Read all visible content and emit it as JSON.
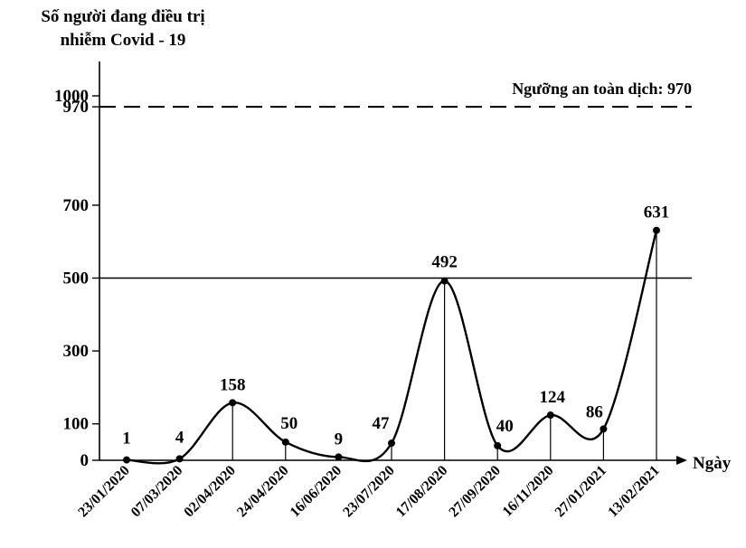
{
  "chart_data": {
    "type": "line",
    "ylabel_lines": [
      "Số người đang điều trị",
      "nhiễm Covid - 19"
    ],
    "xlabel": "Ngày",
    "categories": [
      "23/01/2020",
      "07/03/2020",
      "02/04/2020",
      "24/04/2020",
      "16/06/2020",
      "23/07/2020",
      "17/08/2020",
      "27/09/2020",
      "16/11/2020",
      "27/01/2021",
      "13/02/2021"
    ],
    "series": [
      {
        "values": [
          1,
          4,
          158,
          50,
          9,
          47,
          492,
          40,
          124,
          86,
          631
        ]
      }
    ],
    "yticks": [
      0,
      100,
      300,
      500,
      700,
      970,
      1000
    ],
    "ylim": [
      0,
      1000
    ],
    "reference_lines": [
      {
        "value": 970,
        "style": "dashed",
        "label": "Ngưỡng an toàn dịch: 970"
      },
      {
        "value": 500,
        "style": "solid"
      }
    ],
    "grid": false,
    "marker": "circle",
    "data_labels": true,
    "color": "#000000"
  }
}
